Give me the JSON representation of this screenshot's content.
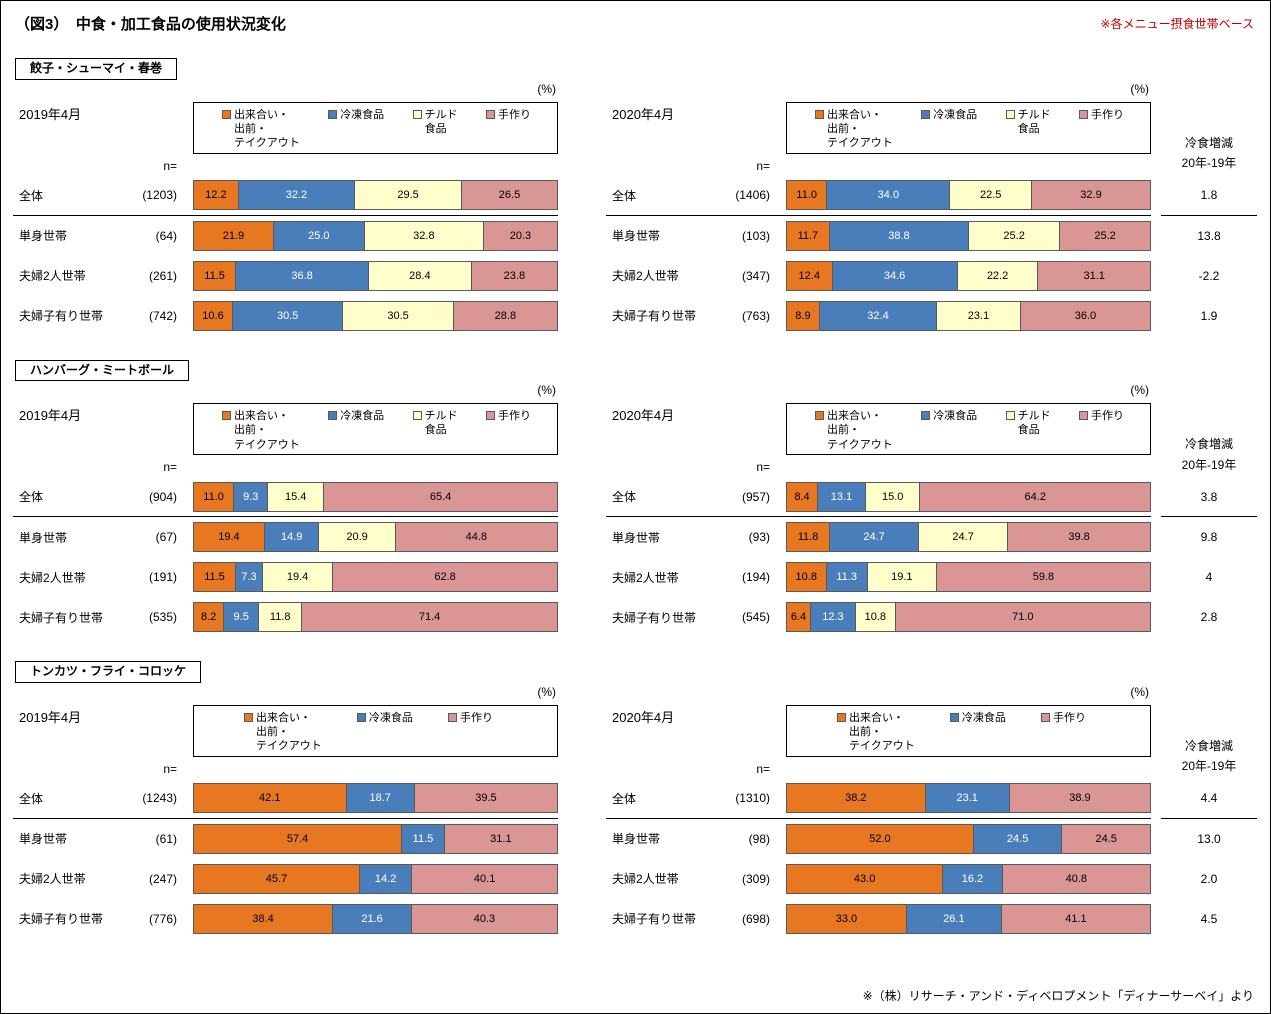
{
  "page": {
    "title": "（図3）　中食・加工食品の使用状況変化",
    "top_note": "※各メニュー摂食世帯ベース",
    "footer_note": "※（株）リサーチ・アンド・ディベロプメント「ディナーサーベイ」より",
    "n_label": "n=",
    "percent_label": "(%)",
    "diff_header_line1": "冷食増減",
    "diff_header_line2": "20年-19年"
  },
  "legend_colors": {
    "takeout": "#E87722",
    "frozen": "#4A7EBB",
    "chilled": "#FFFFCC",
    "homemade": "#DA9694"
  },
  "chart_data": [
    {
      "type": "bar",
      "stacked": true,
      "orientation": "horizontal",
      "unit": "%",
      "section": "餃子・シューマイ・春巻",
      "legend": [
        {
          "key": "takeout",
          "label": "出来合い・\n出前・\nテイクアウト"
        },
        {
          "key": "frozen",
          "label": "冷凍食品"
        },
        {
          "key": "chilled",
          "label": "チルド\n食品"
        },
        {
          "key": "homemade",
          "label": "手作り"
        }
      ],
      "panels": [
        {
          "period": "2019年4月",
          "rows": [
            {
              "label": "全体",
              "n": "(1203)",
              "values": [
                12.2,
                32.2,
                29.5,
                26.5
              ]
            },
            {
              "label": "単身世帯",
              "n": "(64)",
              "values": [
                21.9,
                25.0,
                32.8,
                20.3
              ]
            },
            {
              "label": "夫婦2人世帯",
              "n": "(261)",
              "values": [
                11.5,
                36.8,
                28.4,
                23.8
              ]
            },
            {
              "label": "夫婦子有り世帯",
              "n": "(742)",
              "values": [
                10.6,
                30.5,
                30.5,
                28.8
              ]
            }
          ]
        },
        {
          "period": "2020年4月",
          "rows": [
            {
              "label": "全体",
              "n": "(1406)",
              "values": [
                11.0,
                34.0,
                22.5,
                32.9
              ]
            },
            {
              "label": "単身世帯",
              "n": "(103)",
              "values": [
                11.7,
                38.8,
                25.2,
                25.2
              ]
            },
            {
              "label": "夫婦2人世帯",
              "n": "(347)",
              "values": [
                12.4,
                34.6,
                22.2,
                31.1
              ]
            },
            {
              "label": "夫婦子有り世帯",
              "n": "(763)",
              "values": [
                8.9,
                32.4,
                23.1,
                36.0
              ]
            }
          ]
        }
      ],
      "frozen_diff": [
        "1.8",
        "13.8",
        "-2.2",
        "1.9"
      ]
    },
    {
      "type": "bar",
      "stacked": true,
      "orientation": "horizontal",
      "unit": "%",
      "section": "ハンバーグ・ミートボール",
      "legend": [
        {
          "key": "takeout",
          "label": "出来合い・\n出前・\nテイクアウト"
        },
        {
          "key": "frozen",
          "label": "冷凍食品"
        },
        {
          "key": "chilled",
          "label": "チルド\n食品"
        },
        {
          "key": "homemade",
          "label": "手作り"
        }
      ],
      "panels": [
        {
          "period": "2019年4月",
          "rows": [
            {
              "label": "全体",
              "n": "(904)",
              "values": [
                11.0,
                9.3,
                15.4,
                65.4
              ]
            },
            {
              "label": "単身世帯",
              "n": "(67)",
              "values": [
                19.4,
                14.9,
                20.9,
                44.8
              ]
            },
            {
              "label": "夫婦2人世帯",
              "n": "(191)",
              "values": [
                11.5,
                7.3,
                19.4,
                62.8
              ]
            },
            {
              "label": "夫婦子有り世帯",
              "n": "(535)",
              "values": [
                8.2,
                9.5,
                11.8,
                71.4
              ]
            }
          ]
        },
        {
          "period": "2020年4月",
          "rows": [
            {
              "label": "全体",
              "n": "(957)",
              "values": [
                8.4,
                13.1,
                15.0,
                64.2
              ]
            },
            {
              "label": "単身世帯",
              "n": "(93)",
              "values": [
                11.8,
                24.7,
                24.7,
                39.8
              ]
            },
            {
              "label": "夫婦2人世帯",
              "n": "(194)",
              "values": [
                10.8,
                11.3,
                19.1,
                59.8
              ]
            },
            {
              "label": "夫婦子有り世帯",
              "n": "(545)",
              "values": [
                6.4,
                12.3,
                10.8,
                71.0
              ]
            }
          ]
        }
      ],
      "frozen_diff": [
        "3.8",
        "9.8",
        "4",
        "2.8"
      ]
    },
    {
      "type": "bar",
      "stacked": true,
      "orientation": "horizontal",
      "unit": "%",
      "section": "トンカツ・フライ・コロッケ",
      "legend": [
        {
          "key": "takeout",
          "label": "出来合い・\n出前・\nテイクアウト"
        },
        {
          "key": "frozen",
          "label": "冷凍食品"
        },
        {
          "key": "homemade",
          "label": "手作り"
        }
      ],
      "panels": [
        {
          "period": "2019年4月",
          "rows": [
            {
              "label": "全体",
              "n": "(1243)",
              "values": [
                42.1,
                18.7,
                39.5
              ]
            },
            {
              "label": "単身世帯",
              "n": "(61)",
              "values": [
                57.4,
                11.5,
                31.1
              ]
            },
            {
              "label": "夫婦2人世帯",
              "n": "(247)",
              "values": [
                45.7,
                14.2,
                40.1
              ]
            },
            {
              "label": "夫婦子有り世帯",
              "n": "(776)",
              "values": [
                38.4,
                21.6,
                40.3
              ]
            }
          ]
        },
        {
          "period": "2020年4月",
          "rows": [
            {
              "label": "全体",
              "n": "(1310)",
              "values": [
                38.2,
                23.1,
                38.9
              ]
            },
            {
              "label": "単身世帯",
              "n": "(98)",
              "values": [
                52.0,
                24.5,
                24.5
              ]
            },
            {
              "label": "夫婦2人世帯",
              "n": "(309)",
              "values": [
                43.0,
                16.2,
                40.8
              ]
            },
            {
              "label": "夫婦子有り世帯",
              "n": "(698)",
              "values": [
                33.0,
                26.1,
                41.1
              ]
            }
          ]
        }
      ],
      "frozen_diff": [
        "4.4",
        "13.0",
        "2.0",
        "4.5"
      ]
    }
  ]
}
